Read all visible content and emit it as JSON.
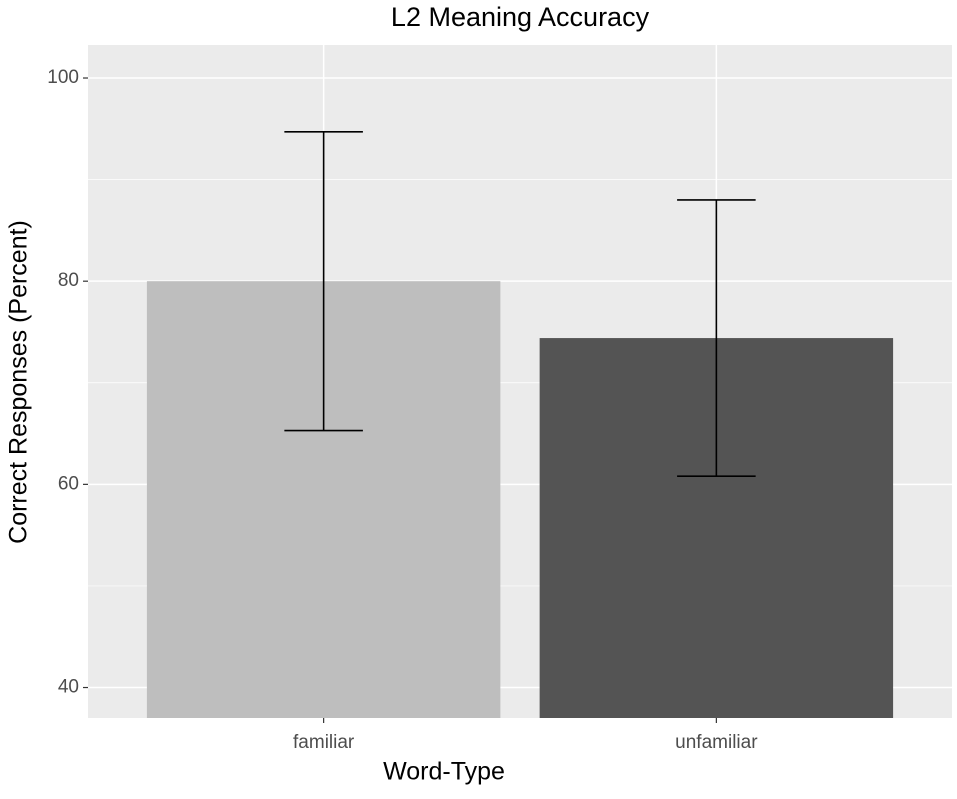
{
  "chart_data": {
    "type": "bar",
    "title": "L2 Meaning Accuracy",
    "x_label": "Word-Type",
    "y_label": "Correct Responses (Percent)",
    "categories": [
      "familiar",
      "unfamiliar"
    ],
    "values": [
      80.0,
      74.4
    ],
    "errors": [
      14.7,
      13.6
    ],
    "colors": [
      "#bebebe",
      "#545454"
    ],
    "ylim": [
      37,
      103.25
    ],
    "yticks": [
      40,
      60,
      80,
      100
    ],
    "minor_yticks": [
      50,
      70,
      90
    ],
    "grid": true,
    "background": "#ebebeb"
  }
}
